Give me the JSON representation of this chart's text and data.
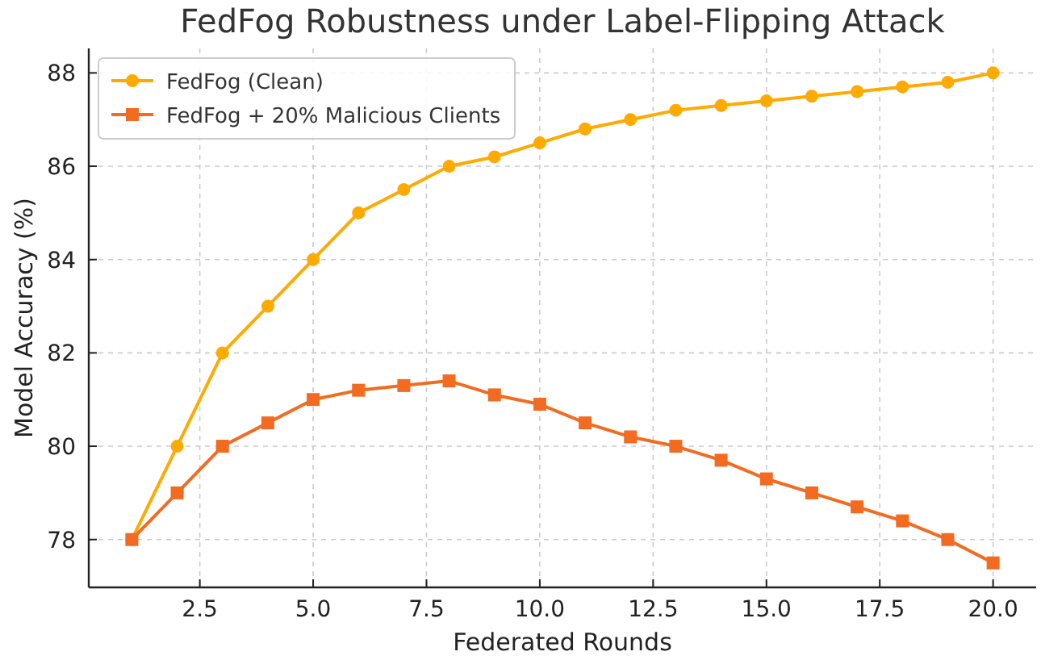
{
  "chart_data": {
    "type": "line",
    "title": "FedFog Robustness under Label-Flipping Attack",
    "xlabel": "Federated Rounds",
    "ylabel": "Model Accuracy (%)",
    "x": [
      1,
      2,
      3,
      4,
      5,
      6,
      7,
      8,
      9,
      10,
      11,
      12,
      13,
      14,
      15,
      16,
      17,
      18,
      19,
      20
    ],
    "series": [
      {
        "name": "FedFog (Clean)",
        "color": "#ffaa00",
        "marker": "circle",
        "values": [
          78,
          80,
          82,
          83,
          84,
          85,
          85.5,
          86,
          86.2,
          86.5,
          86.8,
          87,
          87.2,
          87.3,
          87.4,
          87.5,
          87.6,
          87.7,
          87.8,
          88
        ]
      },
      {
        "name": "FedFog + 20% Malicious Clients",
        "color": "#f26b21",
        "marker": "square",
        "values": [
          78,
          79,
          80,
          80.5,
          81,
          81.2,
          81.3,
          81.4,
          81.1,
          80.9,
          80.5,
          80.2,
          80,
          79.7,
          79.3,
          79,
          78.7,
          78.4,
          78,
          77.5
        ]
      }
    ],
    "xlim": [
      0.05,
      20.95
    ],
    "xticks": [
      {
        "value": 2.5,
        "label": "2.5"
      },
      {
        "value": 5,
        "label": "5.0"
      },
      {
        "value": 7.5,
        "label": "7.5"
      },
      {
        "value": 10,
        "label": "10.0"
      },
      {
        "value": 12.5,
        "label": "12.5"
      },
      {
        "value": 15,
        "label": "15.0"
      },
      {
        "value": 17.5,
        "label": "17.5"
      },
      {
        "value": 20,
        "label": "20.0"
      }
    ],
    "ylim": [
      76.975,
      88.525
    ],
    "yticks": [
      78,
      80,
      82,
      84,
      86,
      88
    ],
    "grid": true,
    "legend": "top left",
    "line_style": "solid"
  }
}
